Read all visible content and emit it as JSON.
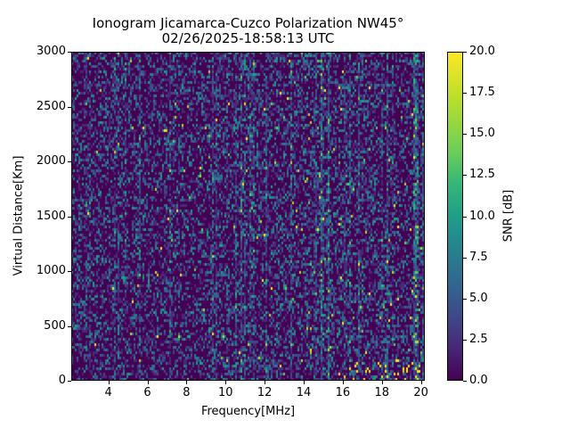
{
  "chart_data": {
    "type": "heatmap",
    "title": "Ionogram Jicamarca-Cuzco Polarization NW45°",
    "subtitle": "02/26/2025-18:58:13 UTC",
    "xlabel": "Frequency[MHz]",
    "ylabel": "Virtual Distance[Km]",
    "colorbar_label": "SNR [dB]",
    "xlim": [
      2.1,
      20.2
    ],
    "ylim": [
      0,
      3000
    ],
    "clim": [
      0.0,
      20.0
    ],
    "colormap": "viridis",
    "x_ticks": [
      "4",
      "6",
      "8",
      "10",
      "12",
      "14",
      "16",
      "18",
      "20"
    ],
    "y_ticks": [
      "0",
      "500",
      "1000",
      "1500",
      "2000",
      "2500",
      "3000"
    ],
    "colorbar_ticks": [
      "0.0",
      "2.5",
      "5.0",
      "7.5",
      "10.0",
      "12.5",
      "15.0",
      "17.5",
      "20.0"
    ],
    "description": "Mostly low-SNR noise (0-5 dB) across all frequencies and distances; scattered vertical streaks of higher SNR, increasing above ~10 MHz; bright yellow (~20 dB) spikes near 0-100 km at 16-20 MHz and near 8 MHz; faint trace near 1000 km at ~15 MHz.",
    "grid": false
  },
  "colors": {
    "viridis": [
      "#440154",
      "#482878",
      "#3e4a89",
      "#31688e",
      "#26828e",
      "#1f9e89",
      "#35b779",
      "#6ece58",
      "#b5de2b",
      "#fde725"
    ]
  }
}
